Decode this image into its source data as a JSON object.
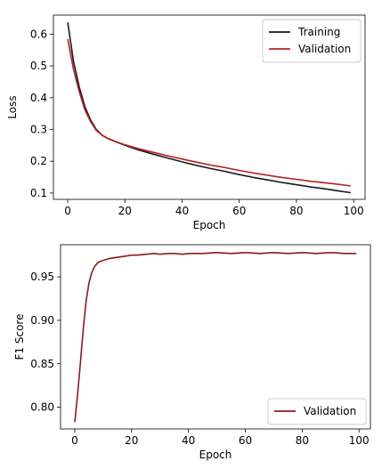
{
  "chart_data": [
    {
      "type": "line",
      "xlabel": "Epoch",
      "ylabel": "Loss",
      "xlim": [
        -5,
        104
      ],
      "ylim": [
        0.08,
        0.66
      ],
      "xticks": [
        0,
        20,
        40,
        60,
        80,
        100
      ],
      "yticks": [
        0.1,
        0.2,
        0.3,
        0.4,
        0.5,
        0.6
      ],
      "grid": false,
      "legend_position": "top-right",
      "x": [
        0,
        2,
        4,
        6,
        8,
        10,
        12,
        14,
        16,
        18,
        20,
        25,
        30,
        35,
        40,
        45,
        50,
        55,
        60,
        65,
        70,
        75,
        80,
        85,
        90,
        95,
        99
      ],
      "series": [
        {
          "name": "Training",
          "color": "#1a1a1a",
          "values": [
            0.637,
            0.515,
            0.435,
            0.372,
            0.33,
            0.3,
            0.282,
            0.272,
            0.264,
            0.257,
            0.25,
            0.235,
            0.222,
            0.21,
            0.198,
            0.187,
            0.177,
            0.168,
            0.158,
            0.149,
            0.141,
            0.133,
            0.126,
            0.119,
            0.113,
            0.106,
            0.101
          ]
        },
        {
          "name": "Validation",
          "color": "#b22222",
          "values": [
            0.585,
            0.49,
            0.42,
            0.362,
            0.325,
            0.297,
            0.282,
            0.272,
            0.265,
            0.258,
            0.252,
            0.239,
            0.228,
            0.217,
            0.207,
            0.197,
            0.188,
            0.18,
            0.171,
            0.163,
            0.156,
            0.149,
            0.143,
            0.137,
            0.132,
            0.127,
            0.122
          ]
        }
      ]
    },
    {
      "type": "line",
      "xlabel": "Epoch",
      "ylabel": "F1 Score",
      "xlim": [
        -5,
        104
      ],
      "ylim": [
        0.775,
        0.987
      ],
      "xticks": [
        0,
        20,
        40,
        60,
        80,
        100
      ],
      "yticks": [
        0.8,
        0.85,
        0.9,
        0.95
      ],
      "ytick_labels": [
        "0.80",
        "0.85",
        "0.90",
        "0.95"
      ],
      "grid": false,
      "legend_position": "bottom-right",
      "x": [
        0,
        1,
        2,
        3,
        4,
        5,
        6,
        7,
        8,
        9,
        10,
        12,
        14,
        16,
        18,
        20,
        22,
        25,
        28,
        30,
        33,
        35,
        38,
        40,
        45,
        50,
        55,
        60,
        65,
        70,
        75,
        80,
        85,
        90,
        95,
        99
      ],
      "series": [
        {
          "name": "Validation",
          "color": "#8b1a1a",
          "values": [
            0.783,
            0.815,
            0.851,
            0.89,
            0.922,
            0.943,
            0.955,
            0.962,
            0.966,
            0.968,
            0.969,
            0.971,
            0.972,
            0.973,
            0.974,
            0.975,
            0.975,
            0.976,
            0.977,
            0.976,
            0.977,
            0.977,
            0.976,
            0.977,
            0.977,
            0.978,
            0.977,
            0.978,
            0.977,
            0.978,
            0.977,
            0.978,
            0.977,
            0.978,
            0.977,
            0.977
          ]
        }
      ]
    }
  ]
}
